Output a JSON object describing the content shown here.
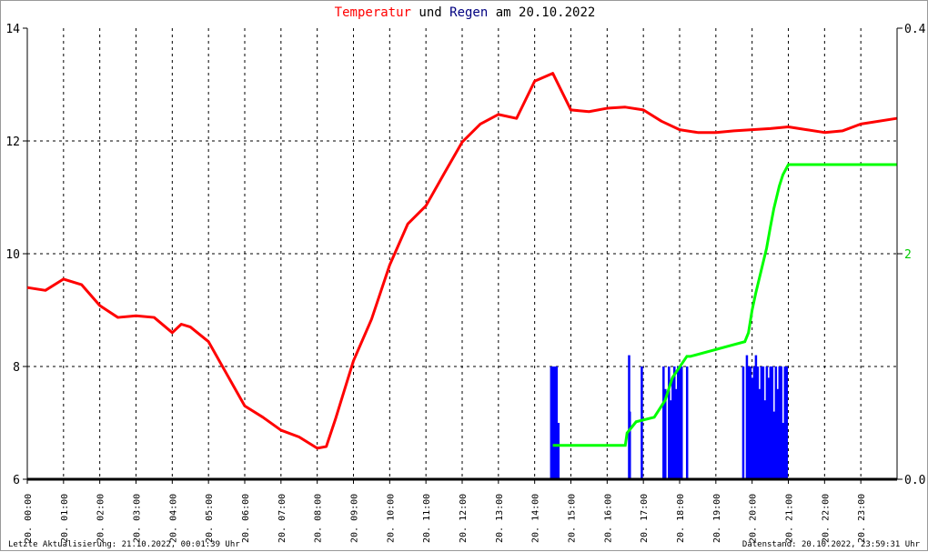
{
  "chart_data": {
    "type": "line",
    "title": {
      "part1": "Temperatur",
      "part2": "und",
      "part3": "Regen",
      "part4": "am 20.10.2022"
    },
    "colors": {
      "temperature": "#ff0000",
      "rain": "#0000ff",
      "rain_sum": "#00ff00",
      "title_temp": "#ff0000",
      "title_rain": "#000080"
    },
    "ylim_left": [
      6,
      14
    ],
    "yticks_left": [
      "6",
      "8",
      "10",
      "12",
      "14"
    ],
    "right_axis": {
      "top_label": "0.4",
      "mid_label": "2",
      "bottom_label": "0.0",
      "rain_lim": [
        0,
        0.4
      ],
      "sum_lim": [
        0,
        4
      ]
    },
    "xticks": [
      "20. 00:00",
      "20. 01:00",
      "20. 02:00",
      "20. 03:00",
      "20. 04:00",
      "20. 05:00",
      "20. 06:00",
      "20. 07:00",
      "20. 08:00",
      "20. 09:00",
      "20. 10:00",
      "20. 11:00",
      "20. 12:00",
      "20. 13:00",
      "20. 14:00",
      "20. 15:00",
      "20. 16:00",
      "20. 17:00",
      "20. 18:00",
      "20. 19:00",
      "20. 20:00",
      "20. 21:00",
      "20. 22:00",
      "20. 23:00"
    ],
    "temperature": {
      "name": "Temperatur",
      "x_hours": [
        0,
        0.5,
        1,
        1.5,
        2,
        2.5,
        3,
        3.5,
        4,
        4.25,
        4.5,
        5,
        5.5,
        6,
        6.5,
        7,
        7.5,
        8,
        8.25,
        8.5,
        9,
        9.5,
        10,
        10.5,
        11,
        11.5,
        12,
        12.5,
        13,
        13.5,
        14,
        14.5,
        15,
        15.5,
        16,
        16.5,
        17,
        17.5,
        18,
        18.5,
        19,
        19.5,
        20,
        20.5,
        21,
        21.5,
        22,
        22.5,
        23,
        23.99
      ],
      "values": [
        9.4,
        9.35,
        9.55,
        9.45,
        9.08,
        8.87,
        8.9,
        8.87,
        8.6,
        8.75,
        8.7,
        8.44,
        7.87,
        7.3,
        7.1,
        6.87,
        6.75,
        6.55,
        6.58,
        7.06,
        8.1,
        8.84,
        9.8,
        10.53,
        10.85,
        11.42,
        11.98,
        12.3,
        12.47,
        12.4,
        13.06,
        13.2,
        12.55,
        12.52,
        12.58,
        12.6,
        12.55,
        12.35,
        12.2,
        12.15,
        12.15,
        12.18,
        12.2,
        12.22,
        12.25,
        12.2,
        12.15,
        12.18,
        12.3,
        12.4
      ]
    },
    "rain_sum": {
      "name": "Regensumme",
      "x_hours": [
        14.5,
        14.6,
        16.5,
        16.55,
        16.8,
        17.3,
        17.6,
        17.8,
        18.2,
        18.3,
        19.8,
        19.9,
        20.0,
        20.1,
        20.25,
        20.4,
        20.5,
        20.6,
        20.75,
        20.85,
        21.0,
        23.99
      ],
      "values": [
        0.3,
        0.3,
        0.3,
        0.41,
        0.51,
        0.55,
        0.7,
        0.9,
        1.09,
        1.09,
        1.22,
        1.3,
        1.5,
        1.65,
        1.85,
        2.05,
        2.23,
        2.4,
        2.6,
        2.7,
        2.79,
        2.79
      ]
    },
    "rain": {
      "name": "Regen",
      "x_hours": [
        14.45,
        14.5,
        14.55,
        14.6,
        14.65,
        16.6,
        16.62,
        16.95,
        17.55,
        17.6,
        17.7,
        17.75,
        17.8,
        17.85,
        17.9,
        17.95,
        18.0,
        18.05,
        18.2,
        19.75,
        19.85,
        19.9,
        19.95,
        20.0,
        20.05,
        20.1,
        20.15,
        20.2,
        20.25,
        20.3,
        20.35,
        20.4,
        20.45,
        20.5,
        20.55,
        20.6,
        20.65,
        20.7,
        20.75,
        20.8,
        20.85,
        20.9,
        20.95
      ],
      "values": [
        0.1,
        0.1,
        0.1,
        0.1,
        0.05,
        0.11,
        0.06,
        0.1,
        0.1,
        0.08,
        0.1,
        0.07,
        0.09,
        0.1,
        0.08,
        0.1,
        0.1,
        0.1,
        0.1,
        0.1,
        0.11,
        0.1,
        0.1,
        0.09,
        0.1,
        0.11,
        0.1,
        0.08,
        0.1,
        0.1,
        0.07,
        0.1,
        0.09,
        0.1,
        0.1,
        0.06,
        0.1,
        0.08,
        0.1,
        0.1,
        0.05,
        0.1,
        0.1
      ]
    }
  },
  "footer": {
    "left": "Letzte Aktualisierung: 21.10.2022, 00:01:39 Uhr",
    "right": "Datenstand: 20.10.2022, 23:59:31 Uhr"
  }
}
